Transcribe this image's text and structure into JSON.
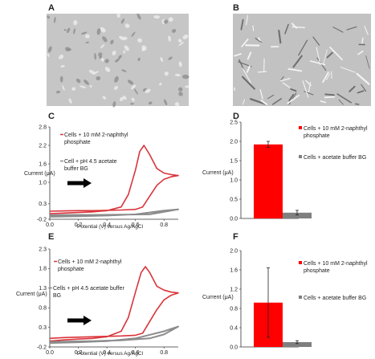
{
  "panels": {
    "A": "A",
    "B": "B",
    "C": "C",
    "D": "D",
    "E": "E",
    "F": "F"
  },
  "colors": {
    "red_series": "#d9343a",
    "gray_series": "#8c8c8c",
    "bar_red": "#ff0000",
    "bar_gray": "#7f7f7f",
    "micrograph_bg": "#c4c4c4"
  },
  "micrographs": [
    {
      "panel": "A",
      "description_icon": "cell-micrograph-icon"
    },
    {
      "panel": "B",
      "description_icon": "cell-micrograph-icon"
    }
  ],
  "chart_data": [
    {
      "panel": "C",
      "type": "line",
      "title": "",
      "ylabel": "Current (μA)",
      "xlabel": "Potential (V) versus Ag/AgCl",
      "xlim": [
        0,
        0.9
      ],
      "ylim": [
        -0.2,
        2.8
      ],
      "xticks": [
        "0.0",
        "0.2",
        "0.4",
        "0.6",
        "0.8"
      ],
      "yticks": [
        "-0.2",
        "0.3",
        "1.0",
        "1.6",
        "2.2",
        "2.8"
      ],
      "arrow": "right",
      "series": [
        {
          "name": "Cells + 10 mM 2-naphthyl phosphate",
          "color": "#d9343a",
          "forward": [
            [
              0.0,
              -0.02
            ],
            [
              0.1,
              0.0
            ],
            [
              0.2,
              0.02
            ],
            [
              0.3,
              0.04
            ],
            [
              0.4,
              0.08
            ],
            [
              0.5,
              0.2
            ],
            [
              0.55,
              0.6
            ],
            [
              0.6,
              1.4
            ],
            [
              0.63,
              2.0
            ],
            [
              0.66,
              2.2
            ],
            [
              0.7,
              1.9
            ],
            [
              0.75,
              1.45
            ],
            [
              0.8,
              1.3
            ],
            [
              0.85,
              1.25
            ],
            [
              0.9,
              1.22
            ]
          ],
          "reverse": [
            [
              0.9,
              1.22
            ],
            [
              0.85,
              1.18
            ],
            [
              0.8,
              1.1
            ],
            [
              0.75,
              0.9
            ],
            [
              0.7,
              0.55
            ],
            [
              0.65,
              0.2
            ],
            [
              0.6,
              0.12
            ],
            [
              0.5,
              0.1
            ],
            [
              0.4,
              0.09
            ],
            [
              0.3,
              0.08
            ],
            [
              0.2,
              0.08
            ],
            [
              0.1,
              0.07
            ],
            [
              0.0,
              0.06
            ]
          ]
        },
        {
          "name": "Cell + pH 4.5 acetate buffer BG",
          "color": "#8c8c8c",
          "forward": [
            [
              0.0,
              -0.12
            ],
            [
              0.2,
              -0.1
            ],
            [
              0.4,
              -0.08
            ],
            [
              0.6,
              -0.04
            ],
            [
              0.8,
              0.08
            ],
            [
              0.9,
              0.12
            ]
          ],
          "reverse": [
            [
              0.9,
              0.12
            ],
            [
              0.8,
              0.04
            ],
            [
              0.7,
              -0.04
            ],
            [
              0.5,
              -0.05
            ],
            [
              0.3,
              -0.06
            ],
            [
              0.1,
              -0.06
            ],
            [
              0.0,
              -0.07
            ]
          ]
        }
      ]
    },
    {
      "panel": "D",
      "type": "bar",
      "title": "",
      "ylabel": "Current (μA)",
      "ylim": [
        0,
        2.5
      ],
      "yticks": [
        "0.0",
        "0.5",
        "1.0",
        "1.5",
        "2.0",
        "2.5"
      ],
      "categories": [
        "Cells + 10 mM 2-naphthyl phosphate",
        "Cells + acetate buffer BG"
      ],
      "values": [
        1.92,
        0.15
      ],
      "errors": [
        0.08,
        0.06
      ],
      "colors": [
        "#ff0000",
        "#7f7f7f"
      ]
    },
    {
      "panel": "E",
      "type": "line",
      "title": "",
      "ylabel": "Current (μA)",
      "xlabel": "Potential (V) versus Ag/AgCl",
      "xlim": [
        0,
        0.9
      ],
      "ylim": [
        -0.2,
        2.3
      ],
      "xticks": [
        "0.0",
        "0.2",
        "0.4",
        "0.6",
        "0.8"
      ],
      "yticks": [
        "-0.2",
        "0.3",
        "0.8",
        "1.3",
        "1.8",
        "2.3"
      ],
      "arrow": "right",
      "series": [
        {
          "name": "Cells + 10 mM 2-naphthyl phosphate",
          "color": "#d9343a",
          "forward": [
            [
              0.0,
              -0.05
            ],
            [
              0.1,
              -0.02
            ],
            [
              0.2,
              0.0
            ],
            [
              0.3,
              0.02
            ],
            [
              0.4,
              0.06
            ],
            [
              0.5,
              0.2
            ],
            [
              0.55,
              0.55
            ],
            [
              0.6,
              1.2
            ],
            [
              0.64,
              1.7
            ],
            [
              0.67,
              1.85
            ],
            [
              0.7,
              1.7
            ],
            [
              0.75,
              1.35
            ],
            [
              0.8,
              1.25
            ],
            [
              0.85,
              1.2
            ],
            [
              0.9,
              1.18
            ]
          ],
          "reverse": [
            [
              0.9,
              1.18
            ],
            [
              0.85,
              1.12
            ],
            [
              0.8,
              1.0
            ],
            [
              0.75,
              0.75
            ],
            [
              0.7,
              0.45
            ],
            [
              0.65,
              0.15
            ],
            [
              0.6,
              0.1
            ],
            [
              0.5,
              0.08
            ],
            [
              0.4,
              0.07
            ],
            [
              0.3,
              0.06
            ],
            [
              0.2,
              0.05
            ],
            [
              0.1,
              0.04
            ],
            [
              0.0,
              0.02
            ]
          ]
        },
        {
          "name": "Cells + pH 4.5 acetate buffer BG",
          "color": "#8c8c8c",
          "forward": [
            [
              0.0,
              -0.1
            ],
            [
              0.2,
              -0.08
            ],
            [
              0.4,
              -0.05
            ],
            [
              0.6,
              0.02
            ],
            [
              0.8,
              0.2
            ],
            [
              0.9,
              0.32
            ]
          ],
          "reverse": [
            [
              0.9,
              0.32
            ],
            [
              0.8,
              0.12
            ],
            [
              0.7,
              0.02
            ],
            [
              0.5,
              -0.03
            ],
            [
              0.3,
              -0.05
            ],
            [
              0.1,
              -0.06
            ],
            [
              0.0,
              -0.07
            ]
          ]
        }
      ]
    },
    {
      "panel": "F",
      "type": "bar",
      "title": "",
      "ylabel": "Current (μA)",
      "ylim": [
        0,
        2.0
      ],
      "yticks": [
        "0.0",
        "0.4",
        "0.8",
        "1.2",
        "1.6",
        "2.0"
      ],
      "categories": [
        "Cells + 10 mM 2-naphthyl phosphate",
        "Cells + acetate buffer BG"
      ],
      "values": [
        0.92,
        0.1
      ],
      "errors": [
        0.72,
        0.03
      ],
      "colors": [
        "#ff0000",
        "#7f7f7f"
      ]
    }
  ]
}
